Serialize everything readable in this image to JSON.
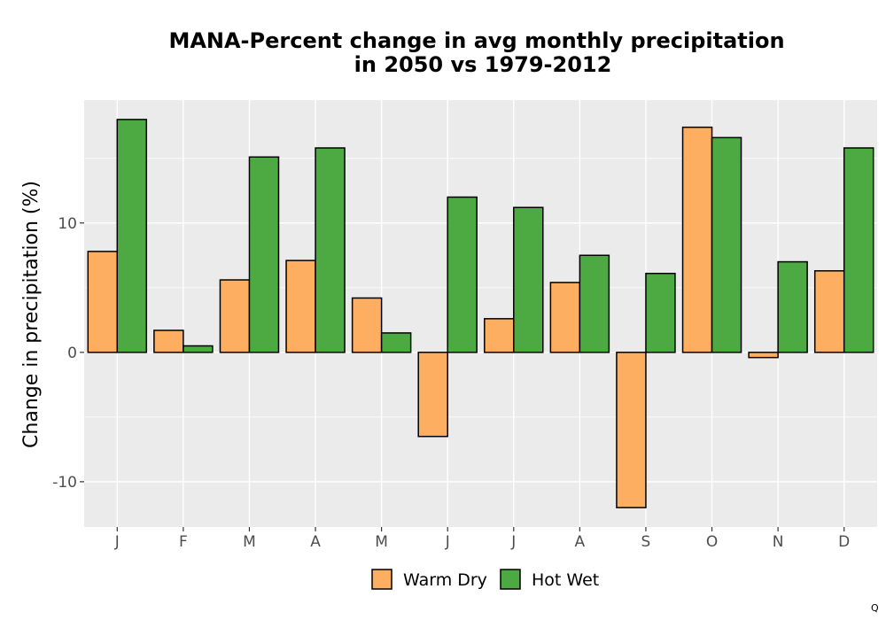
{
  "chart_data": {
    "type": "bar",
    "title_line1": "MANA-Percent change in avg monthly precipitation",
    "title_line2": "in 2050 vs 1979-2012",
    "xlabel": "",
    "ylabel": "Change in precipitation (%)",
    "categories": [
      "J",
      "F",
      "M",
      "A",
      "M",
      "J",
      "J",
      "A",
      "S",
      "O",
      "N",
      "D"
    ],
    "series": [
      {
        "name": "Warm Dry",
        "color": "#fdae61",
        "values": [
          7.8,
          1.7,
          5.6,
          7.1,
          4.2,
          -6.5,
          2.6,
          5.4,
          -12.0,
          17.4,
          -0.4,
          6.3
        ]
      },
      {
        "name": "Hot Wet",
        "color": "#4daa43",
        "values": [
          18.0,
          0.5,
          15.1,
          15.8,
          1.5,
          12.0,
          11.2,
          7.5,
          6.1,
          16.6,
          7.0,
          15.8
        ]
      }
    ],
    "yticks": [
      -10,
      0,
      10
    ],
    "ylim": [
      -13.5,
      19.5
    ],
    "grid": true,
    "legend_position": "bottom",
    "panel_background": "#ebebeb",
    "corner_mark": "Q"
  }
}
